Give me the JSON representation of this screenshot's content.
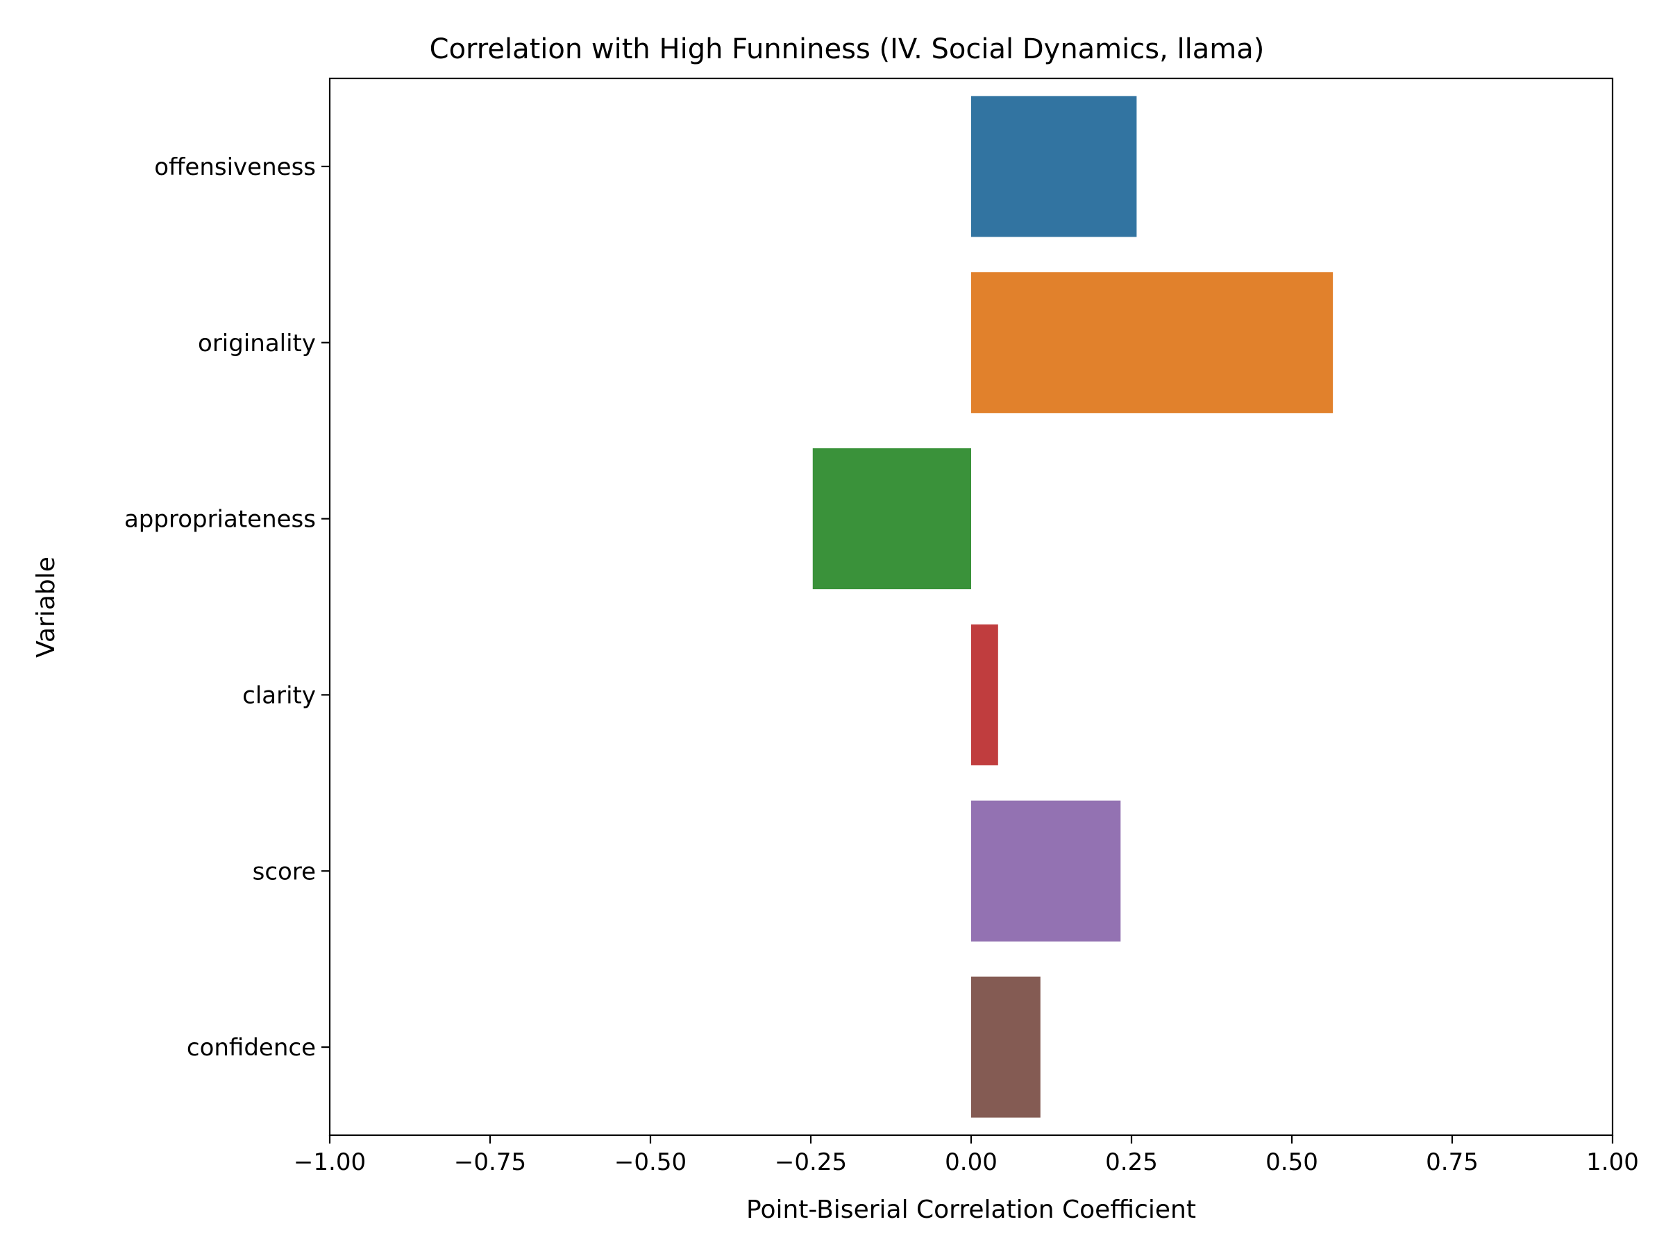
{
  "chart_data": {
    "type": "bar",
    "orientation": "horizontal",
    "title": "Correlation with High Funniness (IV. Social Dynamics, llama)",
    "xlabel": "Point-Biserial Correlation Coefficient",
    "ylabel": "Variable",
    "xlim": [
      -1.0,
      1.0
    ],
    "xticks": [
      -1.0,
      -0.75,
      -0.5,
      -0.25,
      0.0,
      0.25,
      0.5,
      0.75,
      1.0
    ],
    "xtick_labels": [
      "−1.00",
      "−0.75",
      "−0.50",
      "−0.25",
      "0.00",
      "0.25",
      "0.50",
      "0.75",
      "1.00"
    ],
    "categories": [
      "offensiveness",
      "originality",
      "appropriateness",
      "clarity",
      "score",
      "confidence"
    ],
    "values": [
      0.258,
      0.564,
      -0.247,
      0.042,
      0.233,
      0.108
    ],
    "colors": [
      "#3274a1",
      "#e1812c",
      "#3a923a",
      "#c03d3e",
      "#9372b2",
      "#845b53"
    ],
    "grid": false,
    "legend": "none"
  }
}
